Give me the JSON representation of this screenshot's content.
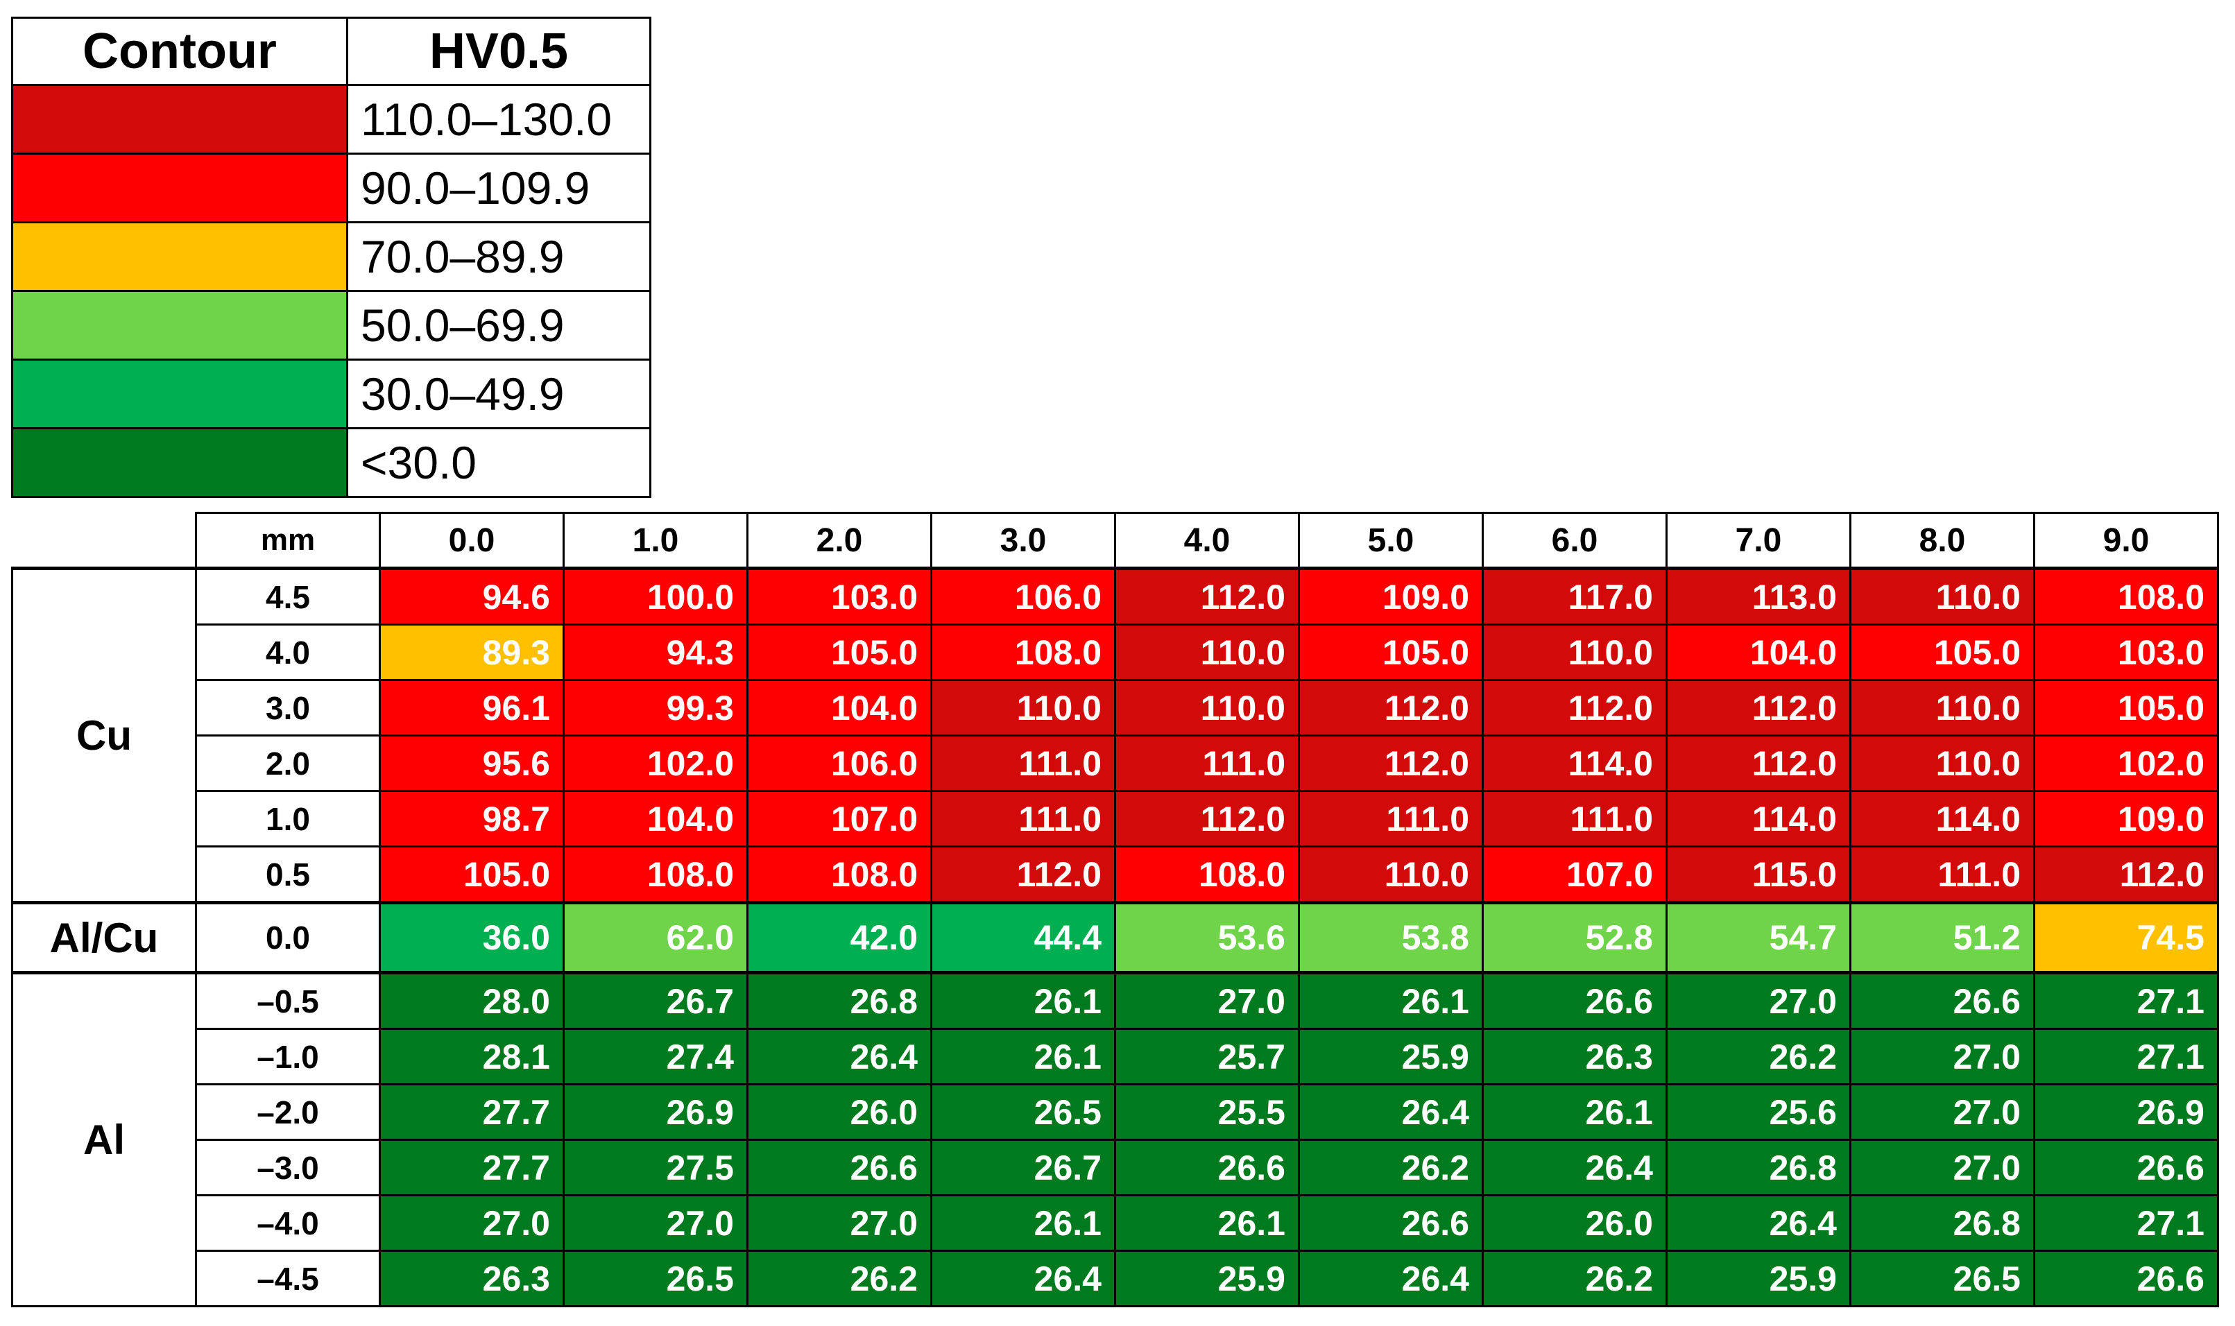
{
  "legend": {
    "header_contour": "Contour",
    "header_hv": "HV0.5",
    "rows": [
      {
        "label": "110.0–130.0",
        "color": "#D20A0A"
      },
      {
        "label": "90.0–109.9",
        "color": "#FF0000"
      },
      {
        "label": "70.0–89.9",
        "color": "#FFC000"
      },
      {
        "label": "50.0–69.9",
        "color": "#70D44A"
      },
      {
        "label": "30.0–49.9",
        "color": "#00B050"
      },
      {
        "label": "<30.0",
        "color": "#007A1E"
      }
    ]
  },
  "chart_data": {
    "type": "heatmap",
    "unit_label": "mm",
    "columns": [
      "0.0",
      "1.0",
      "2.0",
      "3.0",
      "4.0",
      "5.0",
      "6.0",
      "7.0",
      "8.0",
      "9.0"
    ],
    "groups": [
      {
        "name": "Cu",
        "rows": [
          {
            "distance": "4.5",
            "values": [
              "94.6",
              "100.0",
              "103.0",
              "106.0",
              "112.0",
              "109.0",
              "117.0",
              "113.0",
              "110.0",
              "108.0"
            ]
          },
          {
            "distance": "4.0",
            "values": [
              "89.3",
              "94.3",
              "105.0",
              "108.0",
              "110.0",
              "105.0",
              "110.0",
              "104.0",
              "105.0",
              "103.0"
            ]
          },
          {
            "distance": "3.0",
            "values": [
              "96.1",
              "99.3",
              "104.0",
              "110.0",
              "110.0",
              "112.0",
              "112.0",
              "112.0",
              "110.0",
              "105.0"
            ]
          },
          {
            "distance": "2.0",
            "values": [
              "95.6",
              "102.0",
              "106.0",
              "111.0",
              "111.0",
              "112.0",
              "114.0",
              "112.0",
              "110.0",
              "102.0"
            ]
          },
          {
            "distance": "1.0",
            "values": [
              "98.7",
              "104.0",
              "107.0",
              "111.0",
              "112.0",
              "111.0",
              "111.0",
              "114.0",
              "114.0",
              "109.0"
            ]
          },
          {
            "distance": "0.5",
            "values": [
              "105.0",
              "108.0",
              "108.0",
              "112.0",
              "108.0",
              "110.0",
              "107.0",
              "115.0",
              "111.0",
              "112.0"
            ]
          }
        ]
      },
      {
        "name": "Al/Cu",
        "rows": [
          {
            "distance": "0.0",
            "values": [
              "36.0",
              "62.0",
              "42.0",
              "44.4",
              "53.6",
              "53.8",
              "52.8",
              "54.7",
              "51.2",
              "74.5"
            ]
          }
        ]
      },
      {
        "name": "Al",
        "rows": [
          {
            "distance": "–0.5",
            "values": [
              "28.0",
              "26.7",
              "26.8",
              "26.1",
              "27.0",
              "26.1",
              "26.6",
              "27.0",
              "26.6",
              "27.1"
            ]
          },
          {
            "distance": "–1.0",
            "values": [
              "28.1",
              "27.4",
              "26.4",
              "26.1",
              "25.7",
              "25.9",
              "26.3",
              "26.2",
              "27.0",
              "27.1"
            ]
          },
          {
            "distance": "–2.0",
            "values": [
              "27.7",
              "26.9",
              "26.0",
              "26.5",
              "25.5",
              "26.4",
              "26.1",
              "25.6",
              "27.0",
              "26.9"
            ]
          },
          {
            "distance": "–3.0",
            "values": [
              "27.7",
              "27.5",
              "26.6",
              "26.7",
              "26.6",
              "26.2",
              "26.4",
              "26.8",
              "27.0",
              "26.6"
            ]
          },
          {
            "distance": "–4.0",
            "values": [
              "27.0",
              "27.0",
              "27.0",
              "26.1",
              "26.1",
              "26.6",
              "26.0",
              "26.4",
              "26.8",
              "27.1"
            ]
          },
          {
            "distance": "–4.5",
            "values": [
              "26.3",
              "26.5",
              "26.2",
              "26.4",
              "25.9",
              "26.4",
              "26.2",
              "25.9",
              "26.5",
              "26.6"
            ]
          }
        ]
      }
    ]
  }
}
